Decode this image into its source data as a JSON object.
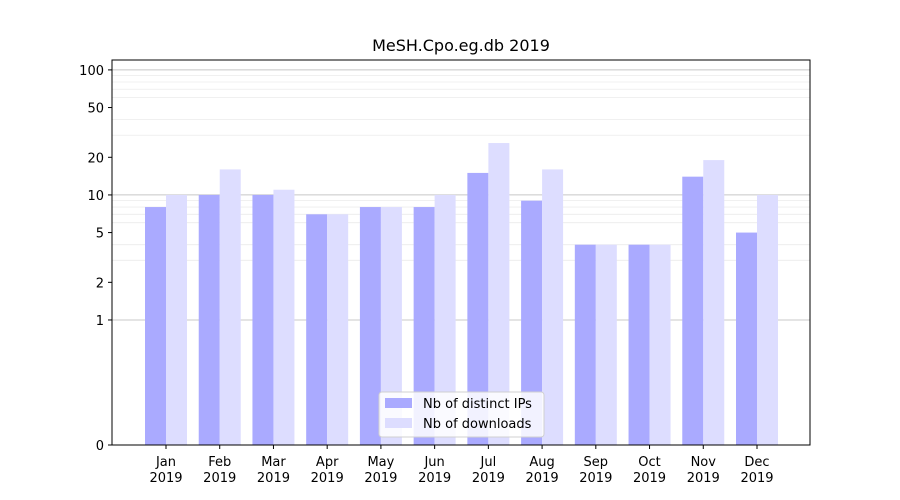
{
  "chart_data": {
    "type": "bar",
    "title": "MeSH.Cpo.eg.db 2019",
    "xlabel": "",
    "ylabel": "",
    "y_scale": "symlog",
    "ylim": [
      0,
      120
    ],
    "yticks": [
      0,
      1,
      2,
      5,
      10,
      20,
      50,
      100
    ],
    "grid": "y",
    "legend_position": "bottom-center",
    "categories": [
      [
        "Jan",
        "2019"
      ],
      [
        "Feb",
        "2019"
      ],
      [
        "Mar",
        "2019"
      ],
      [
        "Apr",
        "2019"
      ],
      [
        "May",
        "2019"
      ],
      [
        "Jun",
        "2019"
      ],
      [
        "Jul",
        "2019"
      ],
      [
        "Aug",
        "2019"
      ],
      [
        "Sep",
        "2019"
      ],
      [
        "Oct",
        "2019"
      ],
      [
        "Nov",
        "2019"
      ],
      [
        "Dec",
        "2019"
      ]
    ],
    "series": [
      {
        "name": "Nb of distinct IPs",
        "color": "#aaaaff",
        "values": [
          8,
          10,
          10,
          7,
          8,
          8,
          15,
          9,
          4,
          4,
          14,
          5
        ]
      },
      {
        "name": "Nb of downloads",
        "color": "#ddddff",
        "values": [
          10,
          16,
          11,
          7,
          8,
          10,
          26,
          16,
          4,
          4,
          19,
          10
        ]
      }
    ]
  }
}
